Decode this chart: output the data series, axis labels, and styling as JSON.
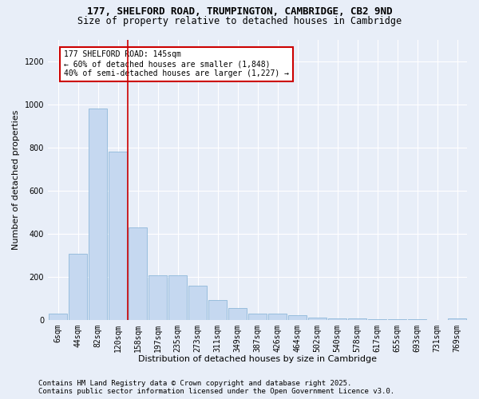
{
  "title_line1": "177, SHELFORD ROAD, TRUMPINGTON, CAMBRIDGE, CB2 9ND",
  "title_line2": "Size of property relative to detached houses in Cambridge",
  "xlabel": "Distribution of detached houses by size in Cambridge",
  "ylabel": "Number of detached properties",
  "categories": [
    "6sqm",
    "44sqm",
    "82sqm",
    "120sqm",
    "158sqm",
    "197sqm",
    "235sqm",
    "273sqm",
    "311sqm",
    "349sqm",
    "387sqm",
    "426sqm",
    "464sqm",
    "502sqm",
    "540sqm",
    "578sqm",
    "617sqm",
    "655sqm",
    "693sqm",
    "731sqm",
    "769sqm"
  ],
  "values": [
    30,
    305,
    980,
    780,
    430,
    205,
    205,
    160,
    90,
    55,
    30,
    30,
    20,
    10,
    5,
    5,
    3,
    2,
    1,
    0,
    5
  ],
  "bar_color": "#c5d8f0",
  "bar_edge_color": "#7fafd4",
  "vline_color": "#cc0000",
  "annotation_text": "177 SHELFORD ROAD: 145sqm\n← 60% of detached houses are smaller (1,848)\n40% of semi-detached houses are larger (1,227) →",
  "annotation_box_color": "#ffffff",
  "annotation_box_edge": "#cc0000",
  "footer_line1": "Contains HM Land Registry data © Crown copyright and database right 2025.",
  "footer_line2": "Contains public sector information licensed under the Open Government Licence v3.0.",
  "ylim": [
    0,
    1300
  ],
  "yticks": [
    0,
    200,
    400,
    600,
    800,
    1000,
    1200
  ],
  "background_color": "#e8eef8",
  "grid_color": "#ffffff",
  "title_fontsize": 9,
  "subtitle_fontsize": 8.5,
  "axis_label_fontsize": 8,
  "tick_fontsize": 7,
  "annotation_fontsize": 7,
  "footer_fontsize": 6.5
}
